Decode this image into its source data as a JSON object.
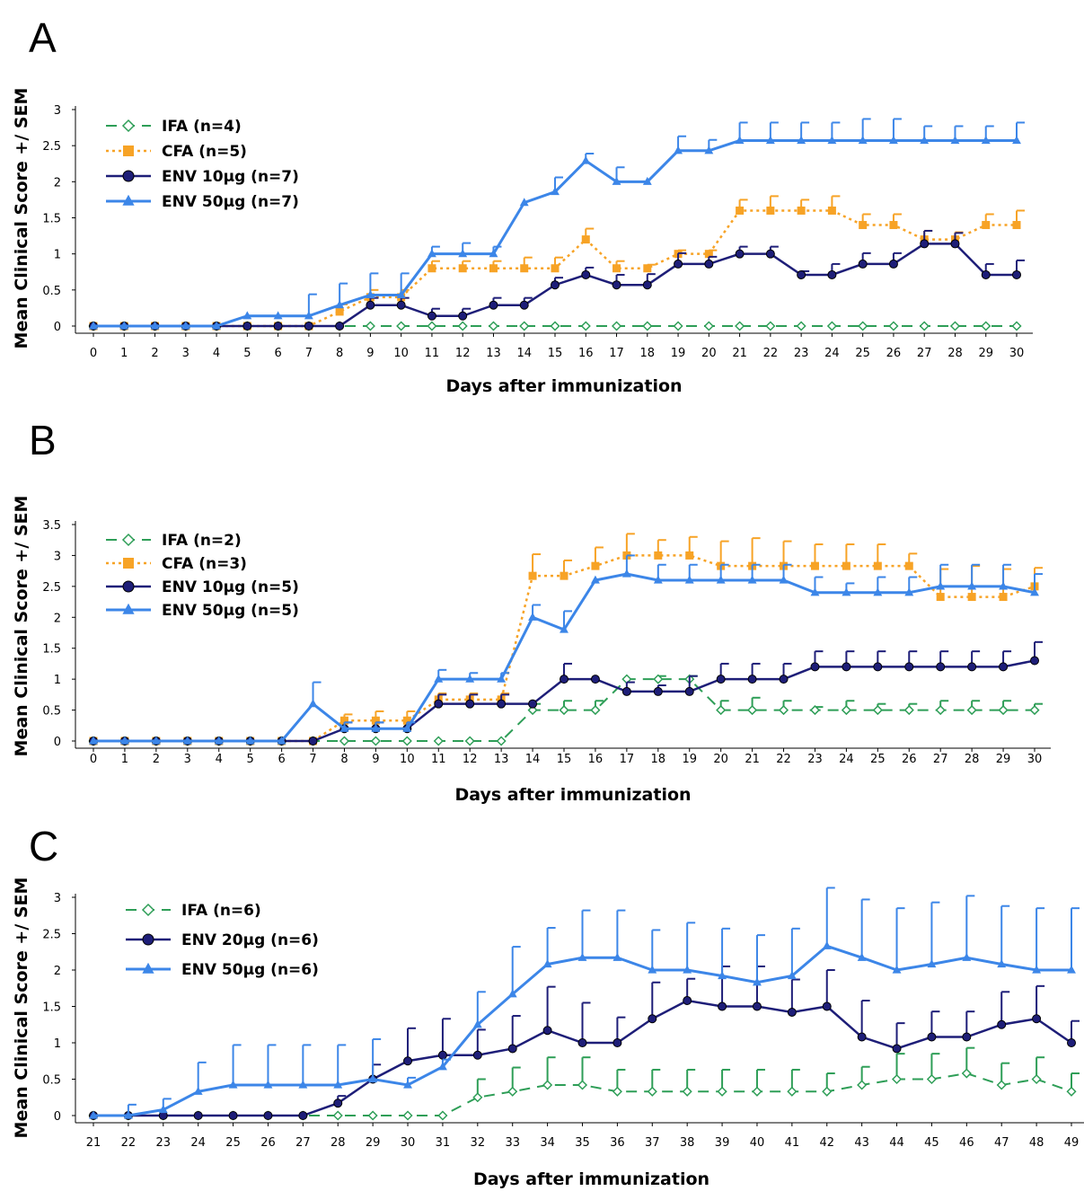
{
  "chart_data": [
    {
      "type": "line",
      "panel_label": "A",
      "xlabel": "Days after immunization",
      "ylabel": "Mean Clinical Score +/ SEM",
      "x": [
        0,
        1,
        2,
        3,
        4,
        5,
        6,
        7,
        8,
        9,
        10,
        11,
        12,
        13,
        14,
        15,
        16,
        17,
        18,
        19,
        20,
        21,
        22,
        23,
        24,
        25,
        26,
        27,
        28,
        29,
        30
      ],
      "ylim": [
        0,
        3
      ],
      "yticks": [
        "0",
        "0.5",
        "1",
        "1.5",
        "2",
        "2.5",
        "3"
      ],
      "legend_position": "top-left",
      "series": [
        {
          "name": "IFA (n=4)",
          "color": "#2e9e57",
          "dash": "dashed",
          "marker": "diamond-open",
          "values": [
            0,
            0,
            0,
            0,
            0,
            0,
            0,
            0,
            0,
            0,
            0,
            0,
            0,
            0,
            0,
            0,
            0,
            0,
            0,
            0,
            0,
            0,
            0,
            0,
            0,
            0,
            0,
            0,
            0,
            0,
            0
          ],
          "errors": [
            0,
            0,
            0,
            0,
            0,
            0,
            0,
            0,
            0,
            0,
            0,
            0,
            0,
            0,
            0,
            0,
            0,
            0,
            0,
            0,
            0,
            0,
            0,
            0,
            0,
            0,
            0,
            0,
            0,
            0,
            0
          ]
        },
        {
          "name": "CFA (n=5)",
          "color": "#f7a326",
          "dash": "dotted",
          "marker": "square",
          "values": [
            0,
            0,
            0,
            0,
            0,
            0,
            0,
            0,
            0.2,
            0.4,
            0.4,
            0.8,
            0.8,
            0.8,
            0.8,
            0.8,
            1.2,
            0.8,
            0.8,
            1.0,
            1.0,
            1.6,
            1.6,
            1.6,
            1.6,
            1.4,
            1.4,
            1.2,
            1.2,
            1.4,
            1.4
          ],
          "errors": [
            0,
            0,
            0,
            0,
            0,
            0,
            0,
            0,
            0.1,
            0.1,
            0.1,
            0.1,
            0.1,
            0.1,
            0.15,
            0.15,
            0.15,
            0.1,
            0.05,
            0.05,
            0.05,
            0.15,
            0.2,
            0.15,
            0.2,
            0.15,
            0.15,
            0.12,
            0.1,
            0.15,
            0.2
          ]
        },
        {
          "name": "ENV 10μg (n=7)",
          "color": "#1e1e78",
          "dash": "solid",
          "marker": "circle",
          "values": [
            0,
            0,
            0,
            0,
            0,
            0,
            0,
            0,
            0,
            0.29,
            0.29,
            0.14,
            0.14,
            0.29,
            0.29,
            0.57,
            0.71,
            0.57,
            0.57,
            0.86,
            0.86,
            1.0,
            1.0,
            0.71,
            0.71,
            0.86,
            0.86,
            1.14,
            1.14,
            0.71,
            0.71
          ],
          "errors": [
            0,
            0,
            0,
            0,
            0,
            0,
            0,
            0,
            0,
            0.1,
            0.1,
            0.1,
            0.1,
            0.1,
            0.1,
            0.1,
            0.1,
            0.14,
            0.15,
            0.15,
            0.1,
            0.1,
            0.1,
            0.05,
            0.15,
            0.15,
            0.15,
            0.18,
            0.15,
            0.15,
            0.2
          ]
        },
        {
          "name": "ENV 50μg (n=7)",
          "color": "#3c86e8",
          "dash": "solid",
          "marker": "triangle",
          "values": [
            0,
            0,
            0,
            0,
            0,
            0.14,
            0.14,
            0.14,
            0.29,
            0.43,
            0.43,
            1.0,
            1.0,
            1.0,
            1.71,
            1.86,
            2.29,
            2.0,
            2.0,
            2.43,
            2.43,
            2.57,
            2.57,
            2.57,
            2.57,
            2.57,
            2.57,
            2.57,
            2.57,
            2.57,
            2.57
          ],
          "errors": [
            0,
            0,
            0,
            0,
            0,
            0,
            0,
            0.3,
            0.3,
            0.3,
            0.3,
            0.1,
            0.15,
            0.1,
            0,
            0.2,
            0.1,
            0.2,
            0,
            0.2,
            0.15,
            0.25,
            0.25,
            0.25,
            0.25,
            0.3,
            0.3,
            0.2,
            0.2,
            0.2,
            0.25
          ]
        }
      ]
    },
    {
      "type": "line",
      "panel_label": "B",
      "xlabel": "Days after immunization",
      "ylabel": "Mean Clinical Score +/ SEM",
      "x": [
        0,
        1,
        2,
        3,
        4,
        5,
        6,
        7,
        8,
        9,
        10,
        11,
        12,
        13,
        14,
        15,
        16,
        17,
        18,
        19,
        20,
        21,
        22,
        23,
        24,
        25,
        26,
        27,
        28,
        29,
        30
      ],
      "ylim": [
        0,
        3.5
      ],
      "yticks": [
        "0",
        "0.5",
        "1",
        "1.5",
        "2",
        "2.5",
        "3",
        "3.5"
      ],
      "legend_position": "top-left",
      "series": [
        {
          "name": "IFA (n=2)",
          "color": "#2e9e57",
          "dash": "dashed",
          "marker": "diamond-open",
          "values": [
            0,
            0,
            0,
            0,
            0,
            0,
            0,
            0,
            0,
            0,
            0,
            0,
            0,
            0,
            0.5,
            0.5,
            0.5,
            1.0,
            1.0,
            1.0,
            0.5,
            0.5,
            0.5,
            0.5,
            0.5,
            0.5,
            0.5,
            0.5,
            0.5,
            0.5,
            0.5
          ],
          "errors": [
            0,
            0,
            0,
            0,
            0,
            0,
            0,
            0,
            0,
            0,
            0,
            0,
            0,
            0,
            0.1,
            0.15,
            0.15,
            0,
            0.05,
            0.05,
            0.15,
            0.2,
            0.15,
            0.05,
            0.15,
            0.1,
            0.1,
            0.15,
            0.15,
            0.15,
            0.1
          ]
        },
        {
          "name": "CFA (n=3)",
          "color": "#f7a326",
          "dash": "dotted",
          "marker": "square",
          "values": [
            0,
            0,
            0,
            0,
            0,
            0,
            0,
            0,
            0.33,
            0.33,
            0.33,
            0.67,
            0.67,
            0.67,
            2.67,
            2.67,
            2.83,
            3.0,
            3.0,
            3.0,
            2.83,
            2.83,
            2.83,
            2.83,
            2.83,
            2.83,
            2.83,
            2.33,
            2.33,
            2.33,
            2.5
          ],
          "errors": [
            0,
            0,
            0,
            0,
            0,
            0,
            0,
            0,
            0.1,
            0.15,
            0.15,
            0.1,
            0.1,
            0.1,
            0.35,
            0.25,
            0.3,
            0.35,
            0.25,
            0.3,
            0.4,
            0.45,
            0.4,
            0.35,
            0.35,
            0.35,
            0.2,
            0.45,
            0.5,
            0.45,
            0.3
          ]
        },
        {
          "name": "ENV 10μg (n=5)",
          "color": "#1e1e78",
          "dash": "solid",
          "marker": "circle",
          "values": [
            0,
            0,
            0,
            0,
            0,
            0,
            0,
            0,
            0.2,
            0.2,
            0.2,
            0.6,
            0.6,
            0.6,
            0.6,
            1.0,
            1.0,
            0.8,
            0.8,
            0.8,
            1.0,
            1.0,
            1.0,
            1.2,
            1.2,
            1.2,
            1.2,
            1.2,
            1.2,
            1.2,
            1.3
          ],
          "errors": [
            0,
            0,
            0,
            0,
            0,
            0,
            0,
            0,
            0.1,
            0.1,
            0.1,
            0.15,
            0.15,
            0.15,
            0,
            0.25,
            0,
            0.15,
            0.1,
            0.25,
            0.25,
            0.25,
            0.25,
            0.25,
            0.25,
            0.25,
            0.25,
            0.25,
            0.25,
            0.25,
            0.3
          ]
        },
        {
          "name": "ENV 50μg (n=5)",
          "color": "#3c86e8",
          "dash": "solid",
          "marker": "triangle",
          "values": [
            0,
            0,
            0,
            0,
            0,
            0,
            0,
            0.6,
            0.2,
            0.2,
            0.2,
            1.0,
            1.0,
            1.0,
            2.0,
            1.8,
            2.6,
            2.7,
            2.6,
            2.6,
            2.6,
            2.6,
            2.6,
            2.4,
            2.4,
            2.4,
            2.4,
            2.5,
            2.5,
            2.5,
            2.4
          ],
          "errors": [
            0,
            0,
            0,
            0,
            0,
            0,
            0,
            0.35,
            0.1,
            0.1,
            0.1,
            0.15,
            0.1,
            0.1,
            0.2,
            0.3,
            0,
            0.3,
            0.25,
            0.25,
            0.25,
            0.25,
            0.25,
            0.25,
            0.15,
            0.25,
            0.25,
            0.35,
            0.35,
            0.35,
            0.3
          ]
        }
      ]
    },
    {
      "type": "line",
      "panel_label": "C",
      "xlabel": "Days after immunization",
      "ylabel": "Mean Clinical Score +/ SEM",
      "x": [
        21,
        22,
        23,
        24,
        25,
        26,
        27,
        28,
        29,
        30,
        31,
        32,
        33,
        34,
        35,
        36,
        37,
        38,
        39,
        40,
        41,
        42,
        43,
        44,
        45,
        46,
        47,
        48,
        49
      ],
      "ylim": [
        0,
        3
      ],
      "yticks": [
        "0",
        "0.5",
        "1",
        "1.5",
        "2",
        "2.5",
        "3"
      ],
      "legend_position": "top-left",
      "series": [
        {
          "name": "IFA (n=6)",
          "color": "#2e9e57",
          "dash": "dashed",
          "marker": "diamond-open",
          "values": [
            0,
            0,
            0,
            0,
            0,
            0,
            0,
            0,
            0,
            0,
            0,
            0.25,
            0.33,
            0.42,
            0.42,
            0.33,
            0.33,
            0.33,
            0.33,
            0.33,
            0.33,
            0.33,
            0.42,
            0.5,
            0.5,
            0.58,
            0.42,
            0.5,
            0.33
          ],
          "errors": [
            0,
            0,
            0,
            0,
            0,
            0,
            0,
            0,
            0,
            0,
            0,
            0.25,
            0.33,
            0.38,
            0.38,
            0.3,
            0.3,
            0.3,
            0.3,
            0.3,
            0.3,
            0.25,
            0.25,
            0.35,
            0.35,
            0.35,
            0.3,
            0.3,
            0.25
          ]
        },
        {
          "name": "ENV 20μg (n=6)",
          "color": "#1e1e78",
          "dash": "solid",
          "marker": "circle",
          "values": [
            0,
            0,
            0,
            0,
            0,
            0,
            0,
            0.17,
            0.5,
            0.75,
            0.83,
            0.83,
            0.92,
            1.17,
            1.0,
            1.0,
            1.33,
            1.58,
            1.5,
            1.5,
            1.42,
            1.5,
            1.08,
            0.92,
            1.08,
            1.08,
            1.25,
            1.33,
            1.0
          ],
          "errors": [
            0,
            0,
            0,
            0,
            0,
            0,
            0,
            0.1,
            0.2,
            0.45,
            0.5,
            0.35,
            0.45,
            0.6,
            0.55,
            0.35,
            0.5,
            0.3,
            0.55,
            0.55,
            0.45,
            0.5,
            0.5,
            0.35,
            0.35,
            0.35,
            0.45,
            0.45,
            0.3
          ]
        },
        {
          "name": "ENV 50μg (n=6)",
          "color": "#3c86e8",
          "dash": "solid",
          "marker": "triangle",
          "values": [
            0,
            0,
            0.08,
            0.33,
            0.42,
            0.42,
            0.42,
            0.42,
            0.5,
            0.42,
            0.67,
            1.25,
            1.67,
            2.08,
            2.17,
            2.17,
            2.0,
            2.0,
            1.92,
            1.83,
            1.92,
            2.33,
            2.17,
            2.0,
            2.08,
            2.17,
            2.08,
            2.0,
            2.0
          ],
          "errors": [
            0,
            0.15,
            0.15,
            0.4,
            0.55,
            0.55,
            0.55,
            0.55,
            0.55,
            0.1,
            0.1,
            0.45,
            0.65,
            0.5,
            0.65,
            0.65,
            0.55,
            0.65,
            0.65,
            0.65,
            0.65,
            0.8,
            0.8,
            0.85,
            0.85,
            0.85,
            0.8,
            0.85,
            0.85
          ]
        }
      ]
    }
  ]
}
